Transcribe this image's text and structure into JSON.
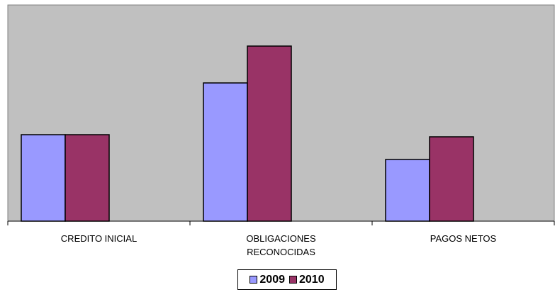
{
  "chart_data": {
    "type": "bar",
    "categories": [
      "CREDITO INICIAL",
      "OBLIGACIONES\nRECONOCIDAS",
      "PAGOS NETOS"
    ],
    "series": [
      {
        "name": "2009",
        "values": [
          122,
          195,
          87
        ],
        "color": "#9999ff"
      },
      {
        "name": "2010",
        "values": [
          122,
          247,
          119
        ],
        "color": "#993366"
      }
    ],
    "ylim": [
      0,
      305
    ],
    "plot_background": "#c0c0c0",
    "grid": false,
    "legend_position": "bottom"
  },
  "legend": {
    "items": [
      {
        "label": "2009",
        "color": "#9999ff"
      },
      {
        "label": "2010",
        "color": "#993366"
      }
    ]
  }
}
